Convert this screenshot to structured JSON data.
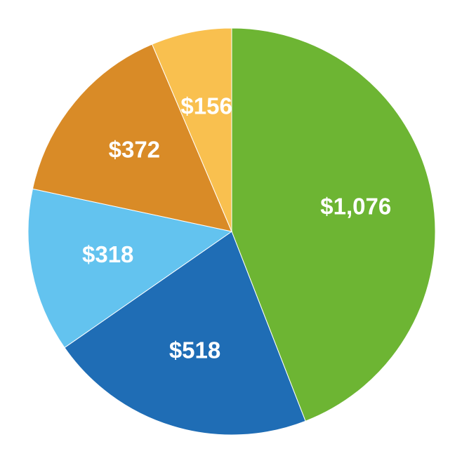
{
  "chart_data": {
    "type": "pie",
    "values": [
      1076,
      518,
      318,
      372,
      156
    ],
    "value_labels": [
      "$1,076",
      "$518",
      "$318",
      "$372",
      "$156"
    ],
    "colors": [
      "#6db533",
      "#1f6db5",
      "#63c3ef",
      "#d98b27",
      "#f9c04f"
    ]
  }
}
